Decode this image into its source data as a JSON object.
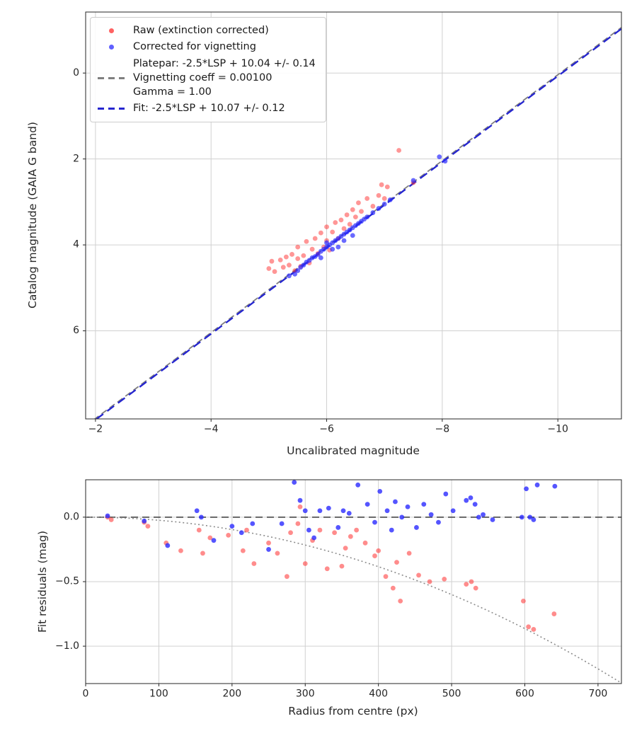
{
  "legend": {
    "entries": [
      {
        "marker": "dot",
        "color": "#ff2d2d",
        "label": "Raw (extinction corrected)"
      },
      {
        "marker": "dot",
        "color": "#2b2bff",
        "label": "Corrected for vignetting"
      },
      {
        "marker": "dash",
        "color": "#7f7f7f",
        "lines": [
          "Platepar: -2.5*LSP + 10.04 +/- 0.14",
          "Vignetting coeff = 0.00100",
          "Gamma = 1.00"
        ]
      },
      {
        "marker": "dash",
        "color": "#2626cf",
        "label": "Fit: -2.5*LSP + 10.07 +/- 0.12"
      }
    ]
  },
  "chart_data": [
    {
      "type": "scatter",
      "title": "",
      "xlabel": "Uncalibrated magnitude",
      "ylabel": "Catalog magnitude (GAIA G band)",
      "xlim": [
        -1.83,
        -11.1
      ],
      "ylim": [
        -1.42,
        8.05
      ],
      "grid": true,
      "grid_color": "#d0d0d0",
      "xticks": [
        {
          "v": -2,
          "label": "−2"
        },
        {
          "v": -4,
          "label": "−4"
        },
        {
          "v": -6,
          "label": "−6"
        },
        {
          "v": -8,
          "label": "−8"
        },
        {
          "v": -10,
          "label": "−10"
        }
      ],
      "yticks": [
        {
          "v": 0,
          "label": "0"
        },
        {
          "v": 2,
          "label": "2"
        },
        {
          "v": 4,
          "label": "4"
        },
        {
          "v": 6,
          "label": "6"
        }
      ],
      "lines": [
        {
          "name": "platepar",
          "kind": "linear",
          "slope": 1,
          "intercept": 10.04,
          "color": "#7f7f7f",
          "dash": [
            9,
            5
          ],
          "width": 1.8
        },
        {
          "name": "fit",
          "kind": "linear",
          "slope": 1,
          "intercept": 10.07,
          "color": "#2626cf",
          "dash": [
            12,
            7
          ],
          "width": 2.4
        }
      ],
      "series": [
        {
          "name": "Raw (extinction corrected)",
          "color": "#ff2d2d",
          "alpha": 0.5,
          "marker_size": 3.4,
          "points": [
            [
              -5.0,
              4.55
            ],
            [
              -5.05,
              4.38
            ],
            [
              -5.1,
              4.62
            ],
            [
              -5.2,
              4.35
            ],
            [
              -5.25,
              4.52
            ],
            [
              -5.3,
              4.28
            ],
            [
              -5.35,
              4.47
            ],
            [
              -5.4,
              4.22
            ],
            [
              -5.45,
              4.6
            ],
            [
              -5.5,
              4.32
            ],
            [
              -5.5,
              4.05
            ],
            [
              -5.55,
              4.5
            ],
            [
              -5.6,
              4.25
            ],
            [
              -5.65,
              3.92
            ],
            [
              -5.7,
              4.42
            ],
            [
              -5.75,
              4.1
            ],
            [
              -5.8,
              3.85
            ],
            [
              -5.85,
              4.2
            ],
            [
              -5.9,
              3.72
            ],
            [
              -5.95,
              4.05
            ],
            [
              -6.0,
              3.9
            ],
            [
              -6.0,
              3.58
            ],
            [
              -6.05,
              4.12
            ],
            [
              -6.1,
              3.7
            ],
            [
              -6.15,
              3.48
            ],
            [
              -6.2,
              3.85
            ],
            [
              -6.25,
              3.42
            ],
            [
              -6.3,
              3.62
            ],
            [
              -6.35,
              3.3
            ],
            [
              -6.4,
              3.52
            ],
            [
              -6.45,
              3.18
            ],
            [
              -6.5,
              3.35
            ],
            [
              -6.55,
              3.02
            ],
            [
              -6.6,
              3.22
            ],
            [
              -6.7,
              2.92
            ],
            [
              -6.8,
              3.1
            ],
            [
              -6.9,
              2.85
            ],
            [
              -6.95,
              2.6
            ],
            [
              -7.0,
              2.92
            ],
            [
              -7.05,
              2.65
            ],
            [
              -7.25,
              1.8
            ],
            [
              -7.5,
              2.55
            ]
          ]
        },
        {
          "name": "Corrected for vignetting",
          "color": "#2b2bff",
          "alpha": 0.7,
          "marker_size": 3.4,
          "points": [
            [
              -5.35,
              4.72
            ],
            [
              -5.45,
              4.68
            ],
            [
              -5.5,
              4.6
            ],
            [
              -5.55,
              4.52
            ],
            [
              -5.6,
              4.47
            ],
            [
              -5.65,
              4.4
            ],
            [
              -5.7,
              4.36
            ],
            [
              -5.75,
              4.3
            ],
            [
              -5.8,
              4.27
            ],
            [
              -5.85,
              4.22
            ],
            [
              -5.9,
              4.3
            ],
            [
              -5.9,
              4.15
            ],
            [
              -5.95,
              4.1
            ],
            [
              -6.0,
              4.05
            ],
            [
              -6.0,
              3.95
            ],
            [
              -6.05,
              4.0
            ],
            [
              -6.1,
              4.1
            ],
            [
              -6.1,
              3.95
            ],
            [
              -6.15,
              3.9
            ],
            [
              -6.2,
              4.05
            ],
            [
              -6.2,
              3.85
            ],
            [
              -6.25,
              3.8
            ],
            [
              -6.3,
              3.9
            ],
            [
              -6.3,
              3.75
            ],
            [
              -6.35,
              3.7
            ],
            [
              -6.4,
              3.65
            ],
            [
              -6.45,
              3.78
            ],
            [
              -6.45,
              3.6
            ],
            [
              -6.5,
              3.55
            ],
            [
              -6.55,
              3.5
            ],
            [
              -6.6,
              3.45
            ],
            [
              -6.65,
              3.4
            ],
            [
              -6.7,
              3.35
            ],
            [
              -6.8,
              3.25
            ],
            [
              -6.9,
              3.15
            ],
            [
              -7.0,
              3.05
            ],
            [
              -7.1,
              2.95
            ],
            [
              -7.5,
              2.5
            ],
            [
              -7.95,
              1.95
            ],
            [
              -8.05,
              2.05
            ]
          ]
        }
      ]
    },
    {
      "type": "scatter",
      "title": "",
      "xlabel": "Radius from centre (px)",
      "ylabel": "Fit residuals (mag)",
      "xlim": [
        0,
        732
      ],
      "ylim": [
        0.29,
        -1.29
      ],
      "grid": true,
      "grid_color": "#d0d0d0",
      "xticks": [
        {
          "v": 0,
          "label": "0"
        },
        {
          "v": 100,
          "label": "100"
        },
        {
          "v": 200,
          "label": "200"
        },
        {
          "v": 300,
          "label": "300"
        },
        {
          "v": 400,
          "label": "400"
        },
        {
          "v": 500,
          "label": "500"
        },
        {
          "v": 600,
          "label": "600"
        },
        {
          "v": 700,
          "label": "700"
        }
      ],
      "yticks": [
        {
          "v": 0,
          "label": "0.0"
        },
        {
          "v": -0.5,
          "label": "−0.5"
        },
        {
          "v": -1,
          "label": "−1.0"
        }
      ],
      "lines": [
        {
          "name": "zero-line",
          "kind": "hline",
          "y": 0,
          "color": "#555555",
          "dash": [
            10,
            6
          ],
          "width": 1.8
        },
        {
          "name": "vignetting-model",
          "kind": "quad",
          "coeff": -2.4e-06,
          "color": "#8c8c8c",
          "dash": [
            2,
            3.5
          ],
          "width": 1.6
        }
      ],
      "series": [
        {
          "name": "Raw (extinction corrected)",
          "color": "#ff2d2d",
          "alpha": 0.55,
          "marker_size": 3.4,
          "points": [
            [
              30,
              0.0
            ],
            [
              35,
              -0.02
            ],
            [
              80,
              -0.04
            ],
            [
              85,
              -0.07
            ],
            [
              110,
              -0.2
            ],
            [
              130,
              -0.26
            ],
            [
              155,
              -0.1
            ],
            [
              160,
              -0.28
            ],
            [
              170,
              -0.16
            ],
            [
              195,
              -0.14
            ],
            [
              215,
              -0.26
            ],
            [
              220,
              -0.1
            ],
            [
              230,
              -0.36
            ],
            [
              250,
              -0.2
            ],
            [
              262,
              -0.28
            ],
            [
              275,
              -0.46
            ],
            [
              280,
              -0.12
            ],
            [
              290,
              -0.05
            ],
            [
              293,
              0.08
            ],
            [
              300,
              -0.36
            ],
            [
              310,
              -0.18
            ],
            [
              320,
              -0.1
            ],
            [
              330,
              -0.4
            ],
            [
              340,
              -0.12
            ],
            [
              350,
              -0.38
            ],
            [
              355,
              -0.24
            ],
            [
              362,
              -0.15
            ],
            [
              370,
              -0.1
            ],
            [
              382,
              -0.2
            ],
            [
              395,
              -0.3
            ],
            [
              400,
              -0.26
            ],
            [
              410,
              -0.46
            ],
            [
              420,
              -0.55
            ],
            [
              425,
              -0.35
            ],
            [
              430,
              -0.65
            ],
            [
              442,
              -0.28
            ],
            [
              455,
              -0.45
            ],
            [
              470,
              -0.5
            ],
            [
              490,
              -0.48
            ],
            [
              520,
              -0.52
            ],
            [
              527,
              -0.5
            ],
            [
              533,
              -0.55
            ],
            [
              598,
              -0.65
            ],
            [
              605,
              -0.85
            ],
            [
              612,
              -0.87
            ],
            [
              640,
              -0.75
            ]
          ]
        },
        {
          "name": "Corrected for vignetting",
          "color": "#2b2bff",
          "alpha": 0.8,
          "marker_size": 3.4,
          "points": [
            [
              30,
              0.01
            ],
            [
              80,
              -0.03
            ],
            [
              112,
              -0.22
            ],
            [
              152,
              0.05
            ],
            [
              158,
              0.0
            ],
            [
              175,
              -0.18
            ],
            [
              200,
              -0.07
            ],
            [
              213,
              -0.12
            ],
            [
              228,
              -0.05
            ],
            [
              250,
              -0.25
            ],
            [
              268,
              -0.05
            ],
            [
              285,
              0.27
            ],
            [
              293,
              0.13
            ],
            [
              300,
              0.05
            ],
            [
              305,
              -0.1
            ],
            [
              312,
              -0.16
            ],
            [
              320,
              0.05
            ],
            [
              332,
              0.07
            ],
            [
              345,
              -0.08
            ],
            [
              352,
              0.05
            ],
            [
              360,
              0.03
            ],
            [
              372,
              0.25
            ],
            [
              385,
              0.1
            ],
            [
              395,
              -0.04
            ],
            [
              402,
              0.2
            ],
            [
              412,
              0.05
            ],
            [
              418,
              -0.1
            ],
            [
              423,
              0.12
            ],
            [
              432,
              0.0
            ],
            [
              440,
              0.08
            ],
            [
              452,
              -0.08
            ],
            [
              462,
              0.1
            ],
            [
              472,
              0.02
            ],
            [
              482,
              -0.04
            ],
            [
              492,
              0.18
            ],
            [
              502,
              0.05
            ],
            [
              520,
              0.13
            ],
            [
              526,
              0.15
            ],
            [
              532,
              0.1
            ],
            [
              537,
              0.0
            ],
            [
              543,
              0.02
            ],
            [
              556,
              -0.02
            ],
            [
              596,
              0.0
            ],
            [
              602,
              0.22
            ],
            [
              607,
              0.0
            ],
            [
              612,
              -0.02
            ],
            [
              617,
              0.25
            ],
            [
              641,
              0.24
            ]
          ]
        }
      ]
    }
  ]
}
